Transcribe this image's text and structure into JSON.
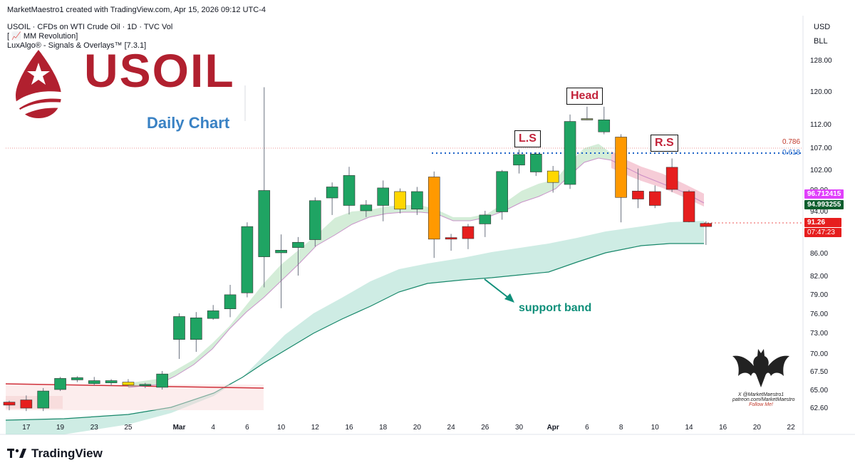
{
  "header": {
    "credit": "MarketMaestro1 created with TradingView.com, Apr 15, 2026 09:12 UTC-4",
    "symbol_line": "USOIL · CFDs on WTI Crude Oil · 1D · TVC  Vol",
    "indicator1": "[ 📈 MM Revolution]",
    "indicator2": "LuxAlgo® - Signals & Overlays™ [7.3.1]"
  },
  "logo": {
    "text": "USOIL",
    "flag_color": "#b1202f"
  },
  "subtitle": "Daily Chart",
  "annotations": {
    "head": "Head",
    "left_shoulder": "L.S",
    "right_shoulder": "R.S",
    "support": "support band"
  },
  "axis": {
    "currency": "USD",
    "scale": "BLL"
  },
  "tags": {
    "magenta": "96.712415",
    "green": "94.993255",
    "price": "91.26",
    "countdown": "07:47:23"
  },
  "fib": {
    "upper": "0.786",
    "lower": "0.618"
  },
  "watermark": {
    "line1": "X @MarketMaestro1",
    "line2": "patreon.com/MarketMaestro",
    "line3": "Follow Me!"
  },
  "footer": {
    "brand": "TradingView"
  },
  "chart_data": {
    "type": "candlestick",
    "y_ticks": [
      62.6,
      65.0,
      67.5,
      70.0,
      73.0,
      76.0,
      79.0,
      82.0,
      86.0,
      94.0,
      98.0,
      102.0,
      107.0,
      112.0,
      120.0,
      128.0
    ],
    "y_tick_labels": [
      "62.60",
      "65.00",
      "67.50",
      "70.00",
      "73.00",
      "76.00",
      "79.00",
      "82.00",
      "86.00",
      "94.00",
      "98.00",
      "102.00",
      "107.00",
      "112.00",
      "120.00",
      "128.00"
    ],
    "x_tick_labels": [
      {
        "label": "17",
        "slot": 1
      },
      {
        "label": "19",
        "slot": 3
      },
      {
        "label": "23",
        "slot": 5
      },
      {
        "label": "25",
        "slot": 7
      },
      {
        "label": "Mar",
        "slot": 10
      },
      {
        "label": "4",
        "slot": 12
      },
      {
        "label": "6",
        "slot": 14
      },
      {
        "label": "10",
        "slot": 16
      },
      {
        "label": "12",
        "slot": 18
      },
      {
        "label": "16",
        "slot": 20
      },
      {
        "label": "18",
        "slot": 22
      },
      {
        "label": "20",
        "slot": 24
      },
      {
        "label": "24",
        "slot": 26
      },
      {
        "label": "26",
        "slot": 28
      },
      {
        "label": "30",
        "slot": 30
      },
      {
        "label": "Apr",
        "slot": 32
      },
      {
        "label": "6",
        "slot": 34
      },
      {
        "label": "8",
        "slot": 36
      },
      {
        "label": "10",
        "slot": 38
      },
      {
        "label": "14",
        "slot": 40
      },
      {
        "label": "16",
        "slot": 42
      },
      {
        "label": "20",
        "slot": 44
      },
      {
        "label": "22",
        "slot": 46
      }
    ],
    "candles": [
      {
        "slot": 0,
        "o": 63.3,
        "h": 63.5,
        "l": 62.2,
        "c": 62.9,
        "color": "#e61e1e"
      },
      {
        "slot": 1,
        "o": 63.6,
        "h": 64.2,
        "l": 62.1,
        "c": 62.5,
        "color": "#e61e1e"
      },
      {
        "slot": 2,
        "o": 62.5,
        "h": 65.2,
        "l": 62.1,
        "c": 64.8,
        "color": "#1fa463"
      },
      {
        "slot": 3,
        "o": 65.0,
        "h": 66.7,
        "l": 64.8,
        "c": 66.5,
        "color": "#1fa463"
      },
      {
        "slot": 4,
        "o": 66.3,
        "h": 66.8,
        "l": 66.0,
        "c": 66.6,
        "color": "#1fa463"
      },
      {
        "slot": 5,
        "o": 65.8,
        "h": 66.7,
        "l": 65.5,
        "c": 66.2,
        "color": "#1fa463"
      },
      {
        "slot": 6,
        "o": 65.9,
        "h": 66.4,
        "l": 65.5,
        "c": 66.2,
        "color": "#1fa463"
      },
      {
        "slot": 7,
        "o": 66.0,
        "h": 66.4,
        "l": 65.4,
        "c": 65.6,
        "color": "#ffd700"
      },
      {
        "slot": 8,
        "o": 65.7,
        "h": 65.9,
        "l": 65.2,
        "c": 65.7,
        "color": "#1fa463"
      },
      {
        "slot": 9,
        "o": 65.3,
        "h": 67.5,
        "l": 65.0,
        "c": 67.1,
        "color": "#1fa463"
      },
      {
        "slot": 10,
        "o": 72.0,
        "h": 76.0,
        "l": 69.2,
        "c": 75.5,
        "color": "#1fa463"
      },
      {
        "slot": 11,
        "o": 72.0,
        "h": 76.2,
        "l": 70.2,
        "c": 75.3,
        "color": "#1fa463"
      },
      {
        "slot": 12,
        "o": 75.2,
        "h": 77.3,
        "l": 75.0,
        "c": 76.4,
        "color": "#1fa463"
      },
      {
        "slot": 13,
        "o": 76.7,
        "h": 80.5,
        "l": 75.4,
        "c": 78.9,
        "color": "#1fa463"
      },
      {
        "slot": 14,
        "o": 79.2,
        "h": 91.8,
        "l": 78.5,
        "c": 91.0,
        "color": "#1fa463"
      },
      {
        "slot": 15,
        "o": 85.3,
        "h": 121.0,
        "l": 80.1,
        "c": 97.8,
        "color": "#1fa463"
      },
      {
        "slot": 16,
        "o": 86.0,
        "h": 89.5,
        "l": 76.8,
        "c": 86.5,
        "color": "#1fa463"
      },
      {
        "slot": 17,
        "o": 87.0,
        "h": 89.0,
        "l": 82.0,
        "c": 88.0,
        "color": "#1fa463"
      },
      {
        "slot": 18,
        "o": 88.5,
        "h": 96.5,
        "l": 87.2,
        "c": 95.9,
        "color": "#1fa463"
      },
      {
        "slot": 19,
        "o": 96.4,
        "h": 99.4,
        "l": 93.2,
        "c": 98.5,
        "color": "#1fa463"
      },
      {
        "slot": 20,
        "o": 95.0,
        "h": 102.6,
        "l": 93.3,
        "c": 100.8,
        "color": "#1fa463"
      },
      {
        "slot": 21,
        "o": 94.0,
        "h": 96.0,
        "l": 92.8,
        "c": 95.1,
        "color": "#1fa463"
      },
      {
        "slot": 22,
        "o": 95.0,
        "h": 99.8,
        "l": 92.0,
        "c": 98.3,
        "color": "#1fa463"
      },
      {
        "slot": 23,
        "o": 97.6,
        "h": 98.2,
        "l": 93.5,
        "c": 94.3,
        "color": "#ffd700"
      },
      {
        "slot": 24,
        "o": 94.3,
        "h": 98.5,
        "l": 93.2,
        "c": 97.6,
        "color": "#1fa463"
      },
      {
        "slot": 25,
        "o": 100.5,
        "h": 101.6,
        "l": 85.1,
        "c": 88.6,
        "color": "#ff9900"
      },
      {
        "slot": 26,
        "o": 88.9,
        "h": 89.6,
        "l": 86.4,
        "c": 88.6,
        "color": "#e61e1e"
      },
      {
        "slot": 27,
        "o": 91.0,
        "h": 91.5,
        "l": 86.7,
        "c": 88.7,
        "color": "#e61e1e"
      },
      {
        "slot": 28,
        "o": 91.5,
        "h": 94.0,
        "l": 89.0,
        "c": 93.2,
        "color": "#1fa463"
      },
      {
        "slot": 29,
        "o": 93.8,
        "h": 101.9,
        "l": 92.3,
        "c": 101.6,
        "color": "#1fa463"
      },
      {
        "slot": 30,
        "o": 103.0,
        "h": 106.5,
        "l": 101.2,
        "c": 105.4,
        "color": "#1fa463"
      },
      {
        "slot": 31,
        "o": 101.5,
        "h": 105.9,
        "l": 100.7,
        "c": 105.5,
        "color": "#1fa463"
      },
      {
        "slot": 32,
        "o": 99.4,
        "h": 102.8,
        "l": 97.4,
        "c": 101.7,
        "color": "#ffd700"
      },
      {
        "slot": 33,
        "o": 99.0,
        "h": 114.3,
        "l": 98.1,
        "c": 112.6,
        "color": "#1fa463"
      },
      {
        "slot": 34,
        "o": 113.0,
        "h": 116.2,
        "l": 112.9,
        "c": 113.3,
        "color": "#8a9a6a"
      },
      {
        "slot": 35,
        "o": 113.0,
        "h": 116.2,
        "l": 109.8,
        "c": 110.3,
        "color": "#1fa463"
      },
      {
        "slot": 36,
        "o": 109.2,
        "h": 109.8,
        "l": 91.8,
        "c": 96.5,
        "color": "#ff9900"
      },
      {
        "slot": 37,
        "o": 97.7,
        "h": 102.2,
        "l": 94.5,
        "c": 96.2,
        "color": "#e61e1e"
      },
      {
        "slot": 38,
        "o": 97.6,
        "h": 98.8,
        "l": 94.5,
        "c": 95.0,
        "color": "#e61e1e"
      },
      {
        "slot": 39,
        "o": 102.5,
        "h": 104.5,
        "l": 97.5,
        "c": 98.0,
        "color": "#e61e1e"
      },
      {
        "slot": 40,
        "o": 97.6,
        "h": 97.9,
        "l": 91.8,
        "c": 91.9,
        "color": "#e61e1e"
      },
      {
        "slot": 41,
        "o": 91.6,
        "h": 92.0,
        "l": 87.5,
        "c": 91.0,
        "color": "#e61e1e"
      }
    ]
  }
}
